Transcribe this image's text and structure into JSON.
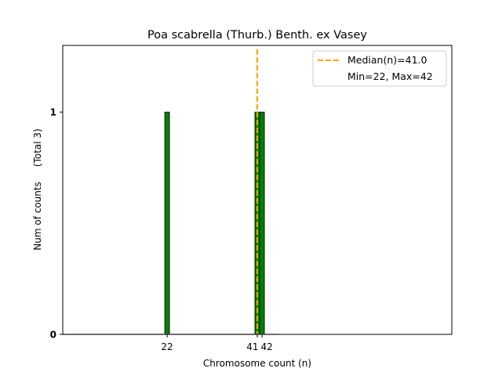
{
  "chart_data": {
    "type": "bar",
    "title": "Poa scabrella (Thurb.) Benth. ex Vasey",
    "xlabel": "Chromosome count (n)",
    "ylabel": "Num of counts     (Total 3)",
    "x": [
      22,
      41,
      42
    ],
    "values": [
      1,
      1,
      1
    ],
    "xticks": [
      "22",
      "41",
      "42"
    ],
    "yticks": [
      "0",
      "1"
    ],
    "xlim": [
      0,
      82
    ],
    "ylim": [
      0,
      1.3
    ],
    "median": 41.0,
    "legend": {
      "position": "top-right",
      "entries": [
        "Median(n)=41.0",
        "Min=22, Max=42"
      ]
    },
    "colors": {
      "bar": "#008000",
      "median": "#FFA500"
    }
  }
}
